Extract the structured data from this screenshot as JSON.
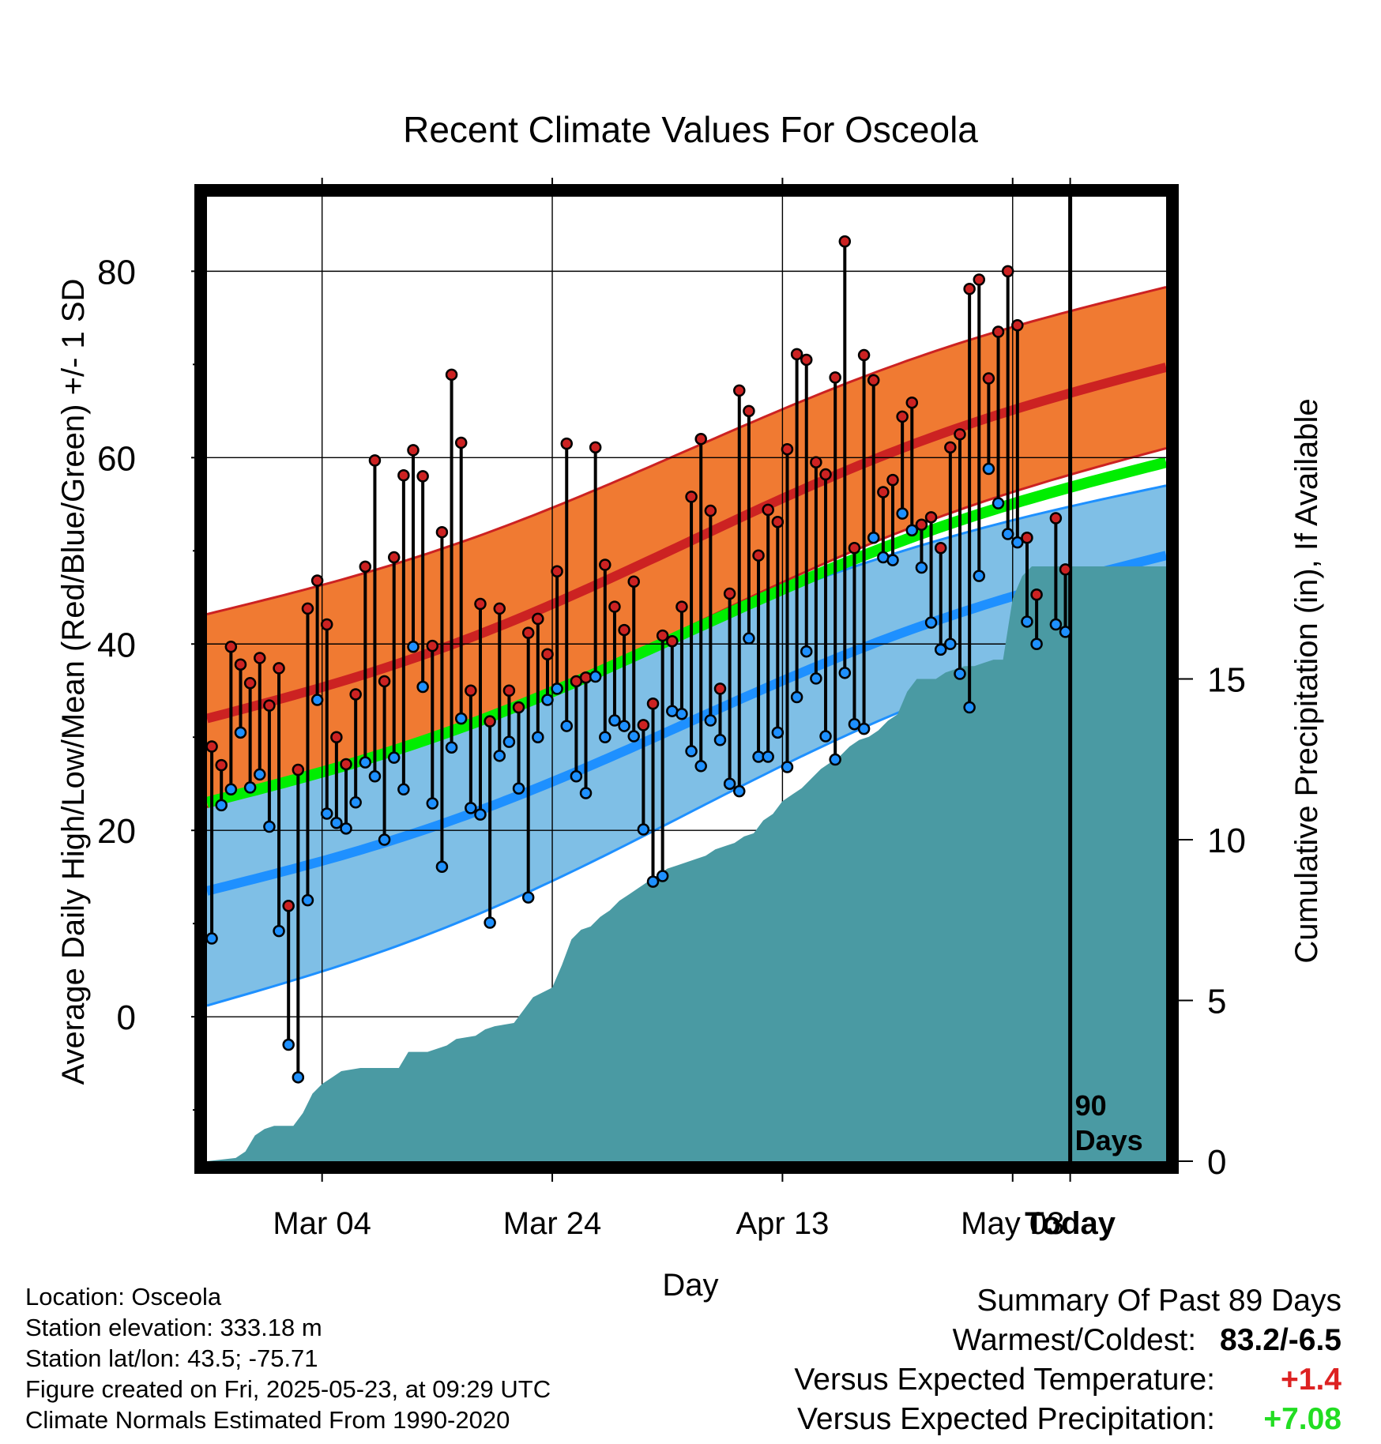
{
  "chart_data": {
    "type": "line",
    "title": "Recent Climate Values For Osceola",
    "xlabel": "Day",
    "ylabel": "Average Daily High/Low/Mean (Red/Blue/Green) +/- 1 SD",
    "y2label": "Cumulative Precipitation (in), If Available",
    "x_ticks": [
      "Mar 04",
      "Mar 24",
      "Apr 13",
      "May 03",
      "Today"
    ],
    "y_ticks": [
      0,
      20,
      40,
      60,
      80
    ],
    "y2_ticks": [
      0,
      5,
      10,
      15
    ],
    "ylim": [
      -15.5,
      88
    ],
    "y2lim": [
      0,
      30
    ],
    "xlim_days_from_start": [
      0,
      100
    ],
    "today_day": 90,
    "today_label": "90 Days",
    "grid": true,
    "normals": {
      "high_mean": {
        "start": 32,
        "end": 69.7,
        "color": "#cc2222"
      },
      "high_upper": {
        "start": 43.2,
        "end": 78.3
      },
      "high_lower": {
        "start": 22.5,
        "end": 61.0
      },
      "low_mean": {
        "start": 13.5,
        "end": 49.5,
        "color": "#1e90ff"
      },
      "low_upper": {
        "start": 26.5,
        "end": 57.0
      },
      "low_lower": {
        "start": 1.2,
        "end": 42.3
      },
      "mean_line": {
        "start": 23,
        "end": 59.5,
        "color": "#00ee00"
      }
    },
    "series": [
      {
        "name": "High",
        "x": [
          0,
          1,
          2,
          3,
          4,
          5,
          6,
          7,
          8,
          9,
          10,
          11,
          12,
          13,
          14,
          15,
          16,
          17,
          18,
          19,
          20,
          21,
          22,
          23,
          24,
          25,
          26,
          27,
          28,
          29,
          30,
          31,
          32,
          33,
          34,
          35,
          36,
          37,
          38,
          39,
          40,
          41,
          42,
          43,
          44,
          45,
          46,
          47,
          48,
          49,
          50,
          51,
          52,
          53,
          54,
          55,
          56,
          57,
          58,
          59,
          60,
          61,
          62,
          63,
          64,
          65,
          66,
          67,
          68,
          69,
          70,
          71,
          72,
          73,
          74,
          75,
          76,
          77,
          78,
          79,
          80,
          81,
          82,
          83,
          84,
          85,
          86,
          87,
          88,
          89
        ],
        "values": [
          29,
          27,
          39.7,
          37.8,
          35.8,
          38.5,
          33.4,
          37.4,
          11.9,
          26.5,
          43.8,
          46.8,
          42.1,
          30,
          27.1,
          34.6,
          48.3,
          59.7,
          36,
          49.3,
          58.1,
          60.8,
          58,
          39.8,
          52,
          68.9,
          61.6,
          35,
          44.3,
          31.7,
          43.8,
          35,
          33.2,
          41.2,
          42.7,
          38.9,
          47.8,
          61.5,
          36,
          36.4,
          61.1,
          48.5,
          44,
          41.5,
          46.7,
          31.3,
          33.6,
          40.9,
          40.3,
          44,
          55.8,
          62,
          54.3,
          35.2,
          45.4,
          67.2,
          65,
          49.5,
          54.4,
          53.1,
          60.9,
          71.1,
          70.5,
          59.5,
          58.2,
          68.6,
          83.2,
          50.3,
          71,
          68.3,
          56.3,
          57.6,
          64.4,
          65.9,
          52.8,
          53.6,
          50.3,
          61.1,
          62.5,
          78.1,
          79.1,
          68.5,
          73.5,
          80,
          74.2,
          51.4,
          45.3,
          null,
          53.5,
          48
        ],
        "color": "#cc2222"
      },
      {
        "name": "Low",
        "x": [
          0,
          1,
          2,
          3,
          4,
          5,
          6,
          7,
          8,
          9,
          10,
          11,
          12,
          13,
          14,
          15,
          16,
          17,
          18,
          19,
          20,
          21,
          22,
          23,
          24,
          25,
          26,
          27,
          28,
          29,
          30,
          31,
          32,
          33,
          34,
          35,
          36,
          37,
          38,
          39,
          40,
          41,
          42,
          43,
          44,
          45,
          46,
          47,
          48,
          49,
          50,
          51,
          52,
          53,
          54,
          55,
          56,
          57,
          58,
          59,
          60,
          61,
          62,
          63,
          64,
          65,
          66,
          67,
          68,
          69,
          70,
          71,
          72,
          73,
          74,
          75,
          76,
          77,
          78,
          79,
          80,
          81,
          82,
          83,
          84,
          85,
          86,
          87,
          88,
          89
        ],
        "values": [
          8.4,
          22.7,
          24.4,
          30.5,
          24.6,
          26,
          20.4,
          9.2,
          -3,
          -6.5,
          12.5,
          34,
          21.8,
          20.8,
          20.2,
          23,
          27.3,
          25.8,
          19,
          27.8,
          24.4,
          39.7,
          35.4,
          22.9,
          16.1,
          28.9,
          32,
          22.4,
          21.7,
          10.1,
          28,
          29.5,
          24.5,
          12.8,
          30,
          34,
          35.2,
          31.2,
          25.8,
          24,
          36.5,
          30,
          31.8,
          31.2,
          30.1,
          20.1,
          14.5,
          15.1,
          32.8,
          32.5,
          28.5,
          26.9,
          31.8,
          29.7,
          25,
          24.2,
          40.6,
          27.9,
          27.9,
          30.5,
          26.8,
          34.3,
          39.2,
          36.3,
          30.1,
          27.6,
          36.9,
          31.4,
          30.9,
          51.4,
          49.3,
          49,
          54,
          52.2,
          48.2,
          42.3,
          39.4,
          40,
          36.8,
          33.2,
          47.3,
          58.8,
          55.1,
          51.8,
          50.9,
          42.4,
          40,
          null,
          42.1,
          41.3
        ],
        "color": "#1e90ff"
      }
    ],
    "precipitation": {
      "name": "Cumulative Precipitation",
      "x": [
        0,
        3,
        4,
        5,
        6,
        7,
        9,
        10,
        11,
        12,
        13,
        14,
        16,
        20,
        21,
        22,
        23,
        25,
        26,
        28,
        29,
        30,
        32,
        33,
        34,
        36,
        37,
        38,
        39,
        40,
        41,
        42,
        43,
        44,
        45,
        46,
        47,
        48,
        49,
        50,
        51,
        52,
        53,
        54,
        55,
        56,
        57,
        58,
        59,
        60,
        61,
        62,
        63,
        64,
        65,
        66,
        67,
        68,
        69,
        70,
        71,
        72,
        73,
        74,
        75,
        76,
        77,
        78,
        79,
        80,
        81,
        82,
        83,
        84,
        85,
        86,
        87,
        88,
        89,
        90,
        100
      ],
      "values": [
        0,
        0.1,
        0.3,
        0.8,
        1,
        1.1,
        1.1,
        1.5,
        2.1,
        2.4,
        2.6,
        2.8,
        2.9,
        2.9,
        3.4,
        3.4,
        3.4,
        3.6,
        3.8,
        3.9,
        4.1,
        4.2,
        4.3,
        4.7,
        5.1,
        5.4,
        6.1,
        6.9,
        7.2,
        7.3,
        7.6,
        7.8,
        8.1,
        8.3,
        8.5,
        8.7,
        8.9,
        9.1,
        9.2,
        9.3,
        9.4,
        9.5,
        9.7,
        9.8,
        9.9,
        10.1,
        10.2,
        10.6,
        10.8,
        11.2,
        11.4,
        11.6,
        11.9,
        12.2,
        12.4,
        12.6,
        12.9,
        13.1,
        13.2,
        13.4,
        13.7,
        13.9,
        14.6,
        15,
        15,
        15,
        15.2,
        15.3,
        15.4,
        15.4,
        15.5,
        15.6,
        15.6,
        17.5,
        18.2,
        18.5,
        18.5,
        18.5,
        18.5,
        18.5,
        18.5
      ],
      "color": "#4a9aa3"
    }
  },
  "info": {
    "location": "Location: Osceola",
    "elevation": "Station elevation: 333.18 m",
    "latlon": "Station lat/lon: 43.5; -75.71",
    "created": "Figure created on Fri, 2025-05-23, at 09:29 UTC",
    "normals": "Climate Normals Estimated From 1990-2020"
  },
  "summary": {
    "heading": "Summary Of Past 89 Days",
    "warmest_coldest_label": "Warmest/Coldest:",
    "warmest_coldest_value": "83.2/-6.5",
    "temp_label": "Versus Expected Temperature:",
    "temp_value": "+1.4",
    "temp_color": "#dd2222",
    "precip_label": "Versus Expected Precipitation:",
    "precip_value": "+7.08",
    "precip_color": "#22dd22"
  }
}
